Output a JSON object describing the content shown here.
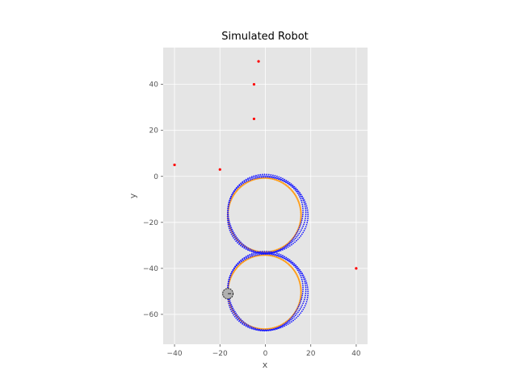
{
  "chart_data": {
    "type": "scatter",
    "title": "Simulated Robot",
    "xlabel": "x",
    "ylabel": "y",
    "xlim": [
      -45,
      45
    ],
    "ylim": [
      -73,
      56
    ],
    "xticks": [
      -40,
      -20,
      0,
      20,
      40
    ],
    "yticks": [
      -60,
      -40,
      -20,
      0,
      20,
      40
    ],
    "grid": true,
    "background": "#e5e5e5",
    "colors": {
      "landmark": "#ff0000",
      "true_path": "#ff9f1c",
      "estimate": "#1a1aff",
      "robot_fill": "#b0b0b0",
      "robot_edge": "#222222"
    },
    "landmarks": [
      {
        "x": -3,
        "y": 50
      },
      {
        "x": -5,
        "y": 40
      },
      {
        "x": -5,
        "y": 25
      },
      {
        "x": -40,
        "y": 5
      },
      {
        "x": -20,
        "y": 3
      },
      {
        "x": 40,
        "y": -40
      }
    ],
    "path_loops": [
      {
        "cx": 0,
        "cy": -16.5,
        "r": 16.5
      },
      {
        "cx": 0,
        "cy": -50,
        "r": 16.5
      }
    ],
    "robot": {
      "x": -16.5,
      "y": -51
    }
  }
}
